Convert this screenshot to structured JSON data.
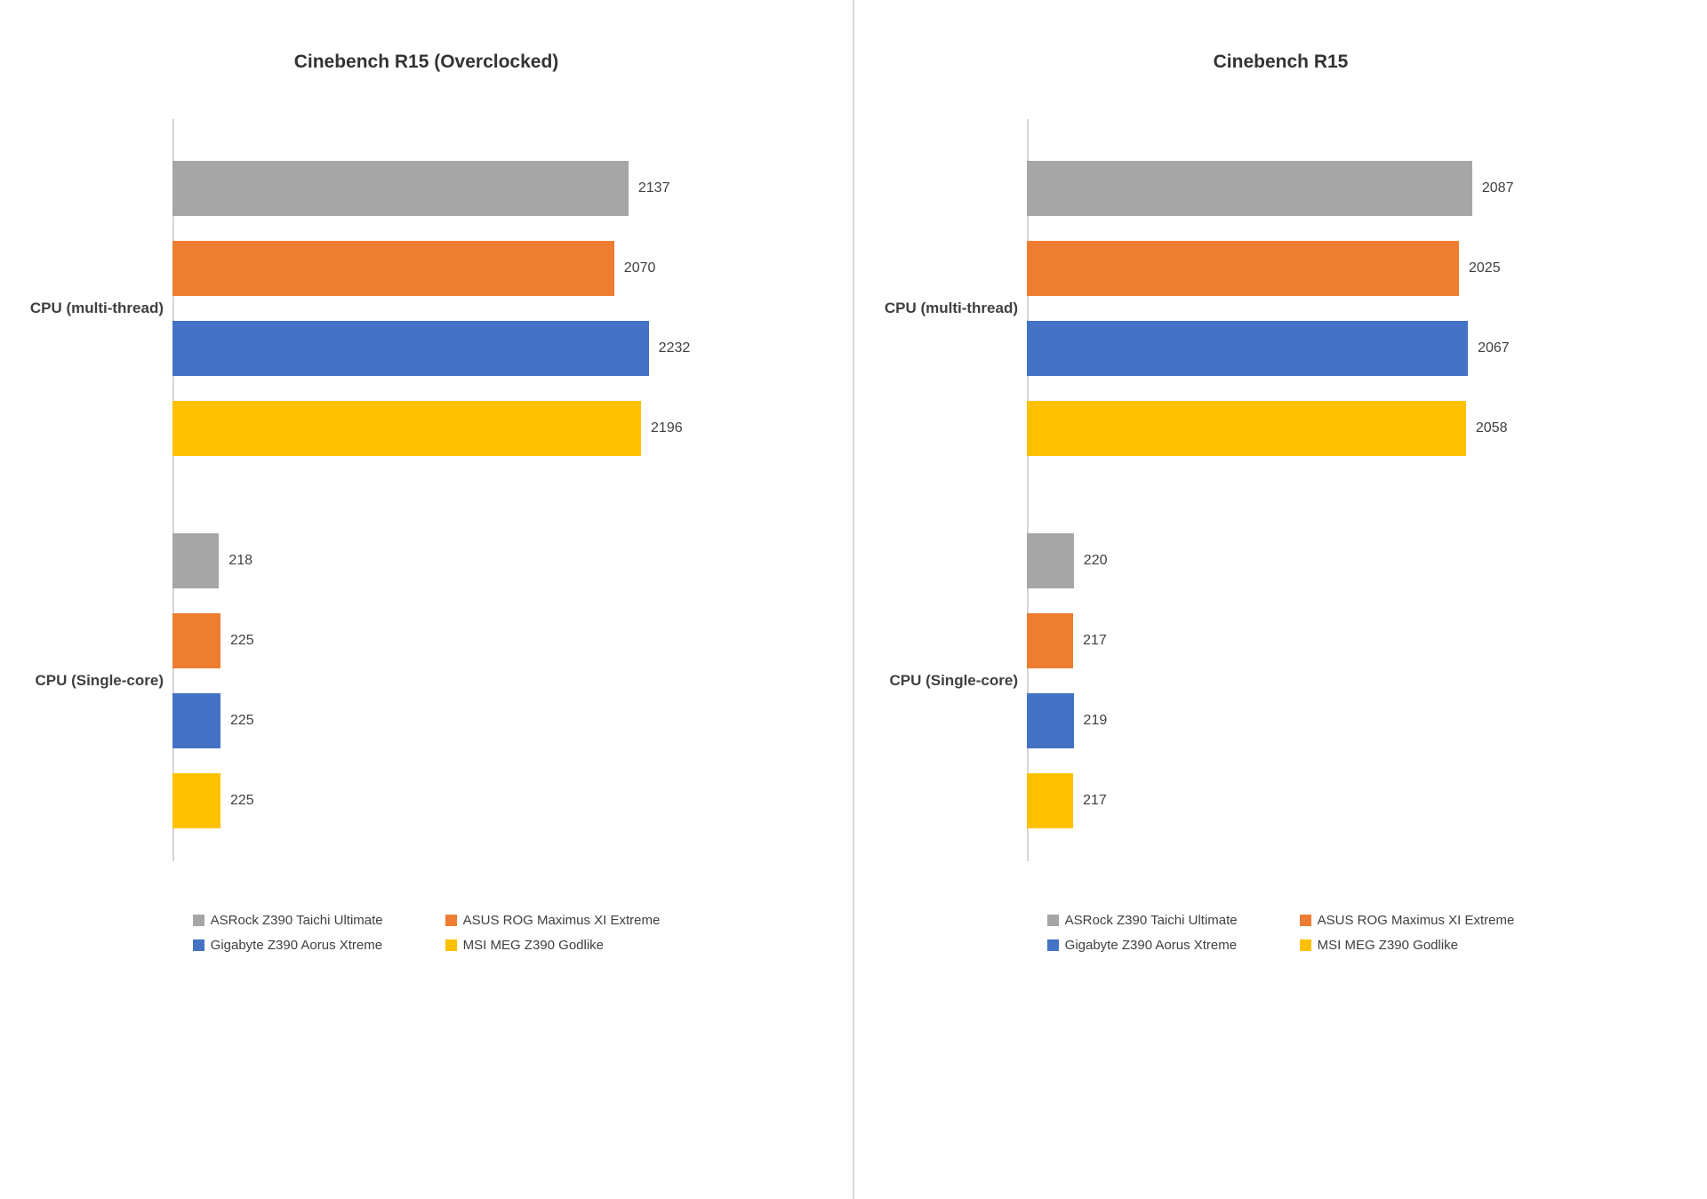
{
  "chart_data": [
    {
      "type": "bar",
      "orientation": "horizontal",
      "title": "Cinebench R15 (Overclocked)",
      "categories": [
        "CPU (multi-thread)",
        "CPU (Single-core)"
      ],
      "series": [
        {
          "name": "ASRock Z390 Taichi Ultimate",
          "color": "#a6a6a6",
          "values": [
            2137,
            218
          ]
        },
        {
          "name": "ASUS ROG Maximus XI Extreme",
          "color": "#ed7d31",
          "values": [
            2070,
            225
          ]
        },
        {
          "name": "Gigabyte Z390 Aorus Xtreme",
          "color": "#4472c4",
          "values": [
            2232,
            225
          ]
        },
        {
          "name": "MSI MEG Z390 Godlike",
          "color": "#ffc000",
          "values": [
            2196,
            225
          ]
        }
      ],
      "xlim": [
        0,
        2500
      ],
      "gridlines": false,
      "data_labels": true,
      "legend_position": "bottom"
    },
    {
      "type": "bar",
      "orientation": "horizontal",
      "title": "Cinebench R15",
      "categories": [
        "CPU (multi-thread)",
        "CPU (Single-core)"
      ],
      "series": [
        {
          "name": "ASRock Z390 Taichi Ultimate",
          "color": "#a6a6a6",
          "values": [
            2087,
            220
          ]
        },
        {
          "name": "ASUS ROG Maximus XI Extreme",
          "color": "#ed7d31",
          "values": [
            2025,
            217
          ]
        },
        {
          "name": "Gigabyte Z390 Aorus Xtreme",
          "color": "#4472c4",
          "values": [
            2067,
            219
          ]
        },
        {
          "name": "MSI MEG Z390 Godlike",
          "color": "#ffc000",
          "values": [
            2058,
            217
          ]
        }
      ],
      "xlim": [
        0,
        2500
      ],
      "gridlines": false,
      "data_labels": true,
      "legend_position": "bottom"
    }
  ]
}
